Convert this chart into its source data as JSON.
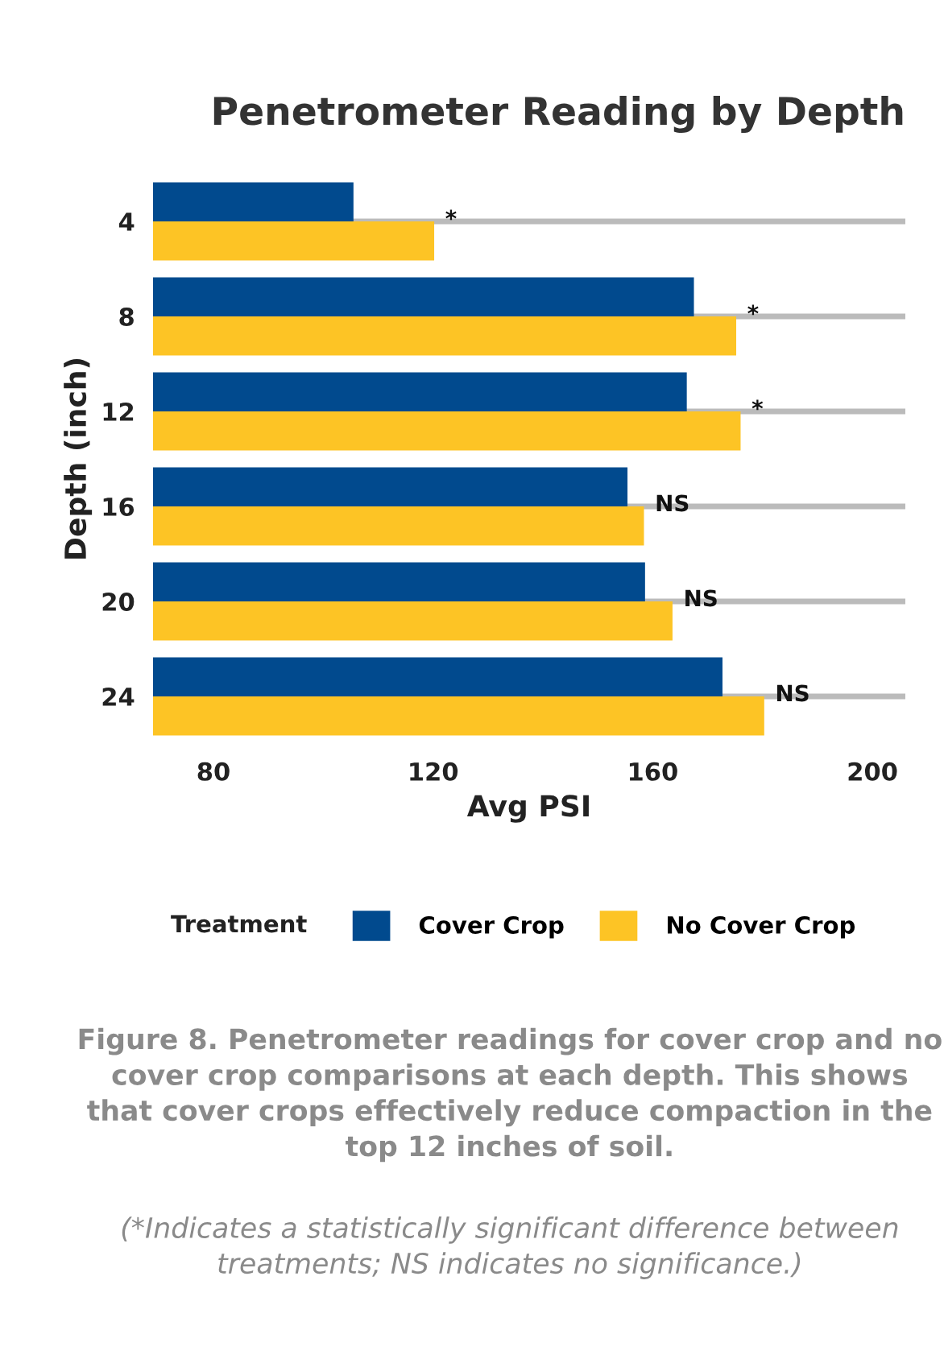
{
  "chart_data": {
    "type": "bar",
    "orientation": "horizontal",
    "title": "Penetrometer Reading by Depth",
    "xlabel": "Avg PSI",
    "ylabel": "Depth (inch)",
    "categories": [
      "4",
      "8",
      "12",
      "16",
      "20",
      "24"
    ],
    "series": [
      {
        "name": "Cover Crop",
        "color": "#014a8e",
        "values": [
          105.5,
          167.5,
          166.2,
          155.4,
          158.6,
          172.7
        ]
      },
      {
        "name": "No Cover Crop",
        "color": "#fdc425",
        "values": [
          120.2,
          175.2,
          176.0,
          158.4,
          163.6,
          180.3
        ]
      }
    ],
    "xlim": [
      69,
      206
    ],
    "xticks": [
      80,
      120,
      160,
      200
    ],
    "grid": "y",
    "legend": "bottom",
    "legend_title": "Treatment",
    "annotations": [
      "*",
      "*",
      "*",
      "NS",
      "NS",
      "NS",
      "Figure 8. Penetrometer readings for cover crop and no cover crop comparisons at each depth. This shows that cover crops effectively reduce compaction in the top 12 inches of soil.",
      "(*Indicates a statistically significant difference between treatments; NS indicates no significance.)"
    ]
  }
}
